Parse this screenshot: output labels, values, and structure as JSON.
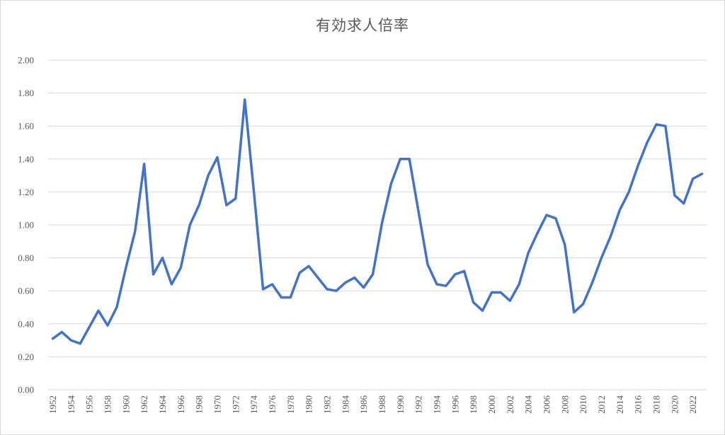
{
  "chart_data": {
    "type": "line",
    "title": "有効求人倍率",
    "xlabel": "",
    "ylabel": "",
    "ylim": [
      0,
      2
    ],
    "y_ticks": [
      "0.00",
      "0.20",
      "0.40",
      "0.60",
      "0.80",
      "1.00",
      "1.20",
      "1.40",
      "1.60",
      "1.80",
      "2.00"
    ],
    "x_tick_labels": [
      "1952",
      "1954",
      "1956",
      "1958",
      "1960",
      "1962",
      "1964",
      "1966",
      "1968",
      "1970",
      "1972",
      "1974",
      "1976",
      "1978",
      "1980",
      "1982",
      "1984",
      "1986",
      "1988",
      "1990",
      "1992",
      "1994",
      "1996",
      "1998",
      "2000",
      "2002",
      "2004",
      "2006",
      "2008",
      "2010",
      "2012",
      "2014",
      "2016",
      "2018",
      "2020",
      "2022"
    ],
    "grid": true,
    "legend": "none",
    "colors": {
      "series": "#4472c4",
      "grid": "#d9d9d9",
      "text": "#595959"
    },
    "x": [
      1952,
      1953,
      1954,
      1955,
      1956,
      1957,
      1958,
      1959,
      1960,
      1961,
      1962,
      1963,
      1964,
      1965,
      1966,
      1967,
      1968,
      1969,
      1970,
      1971,
      1972,
      1973,
      1974,
      1975,
      1976,
      1977,
      1978,
      1979,
      1980,
      1981,
      1982,
      1983,
      1984,
      1985,
      1986,
      1987,
      1988,
      1989,
      1990,
      1991,
      1992,
      1993,
      1994,
      1995,
      1996,
      1997,
      1998,
      1999,
      2000,
      2001,
      2002,
      2003,
      2004,
      2005,
      2006,
      2007,
      2008,
      2009,
      2010,
      2011,
      2012,
      2013,
      2014,
      2015,
      2016,
      2017,
      2018,
      2019,
      2020,
      2021,
      2022,
      2023
    ],
    "series": [
      {
        "values": [
          0.31,
          0.35,
          0.3,
          0.28,
          0.38,
          0.48,
          0.39,
          0.5,
          0.74,
          0.96,
          1.37,
          0.7,
          0.8,
          0.64,
          0.74,
          1.0,
          1.12,
          1.3,
          1.41,
          1.12,
          1.16,
          1.76,
          1.2,
          0.61,
          0.64,
          0.56,
          0.56,
          0.71,
          0.75,
          0.68,
          0.61,
          0.6,
          0.65,
          0.68,
          0.62,
          0.7,
          1.01,
          1.25,
          1.4,
          1.4,
          1.08,
          0.76,
          0.64,
          0.63,
          0.7,
          0.72,
          0.53,
          0.48,
          0.59,
          0.59,
          0.54,
          0.64,
          0.83,
          0.95,
          1.06,
          1.04,
          0.88,
          0.47,
          0.52,
          0.65,
          0.8,
          0.93,
          1.09,
          1.2,
          1.36,
          1.5,
          1.61,
          1.6,
          1.18,
          1.13,
          1.28,
          1.31
        ]
      }
    ]
  }
}
